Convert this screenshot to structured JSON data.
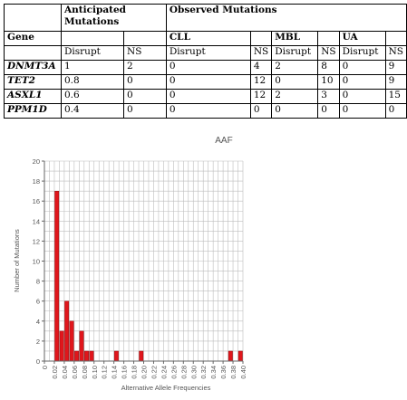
{
  "table": {
    "header1": {
      "anticipated": "Anticipated Mutations",
      "observed": "Observed Mutations"
    },
    "header2": {
      "gene": "Gene",
      "cll": "CLL",
      "mbl": "MBL",
      "ua": "UA"
    },
    "header3": {
      "disrupt_a": "Disrupt",
      "ns_a": "NS",
      "disrupt_cll": "Disrupt",
      "ns_cll": "NS",
      "disrupt_mbl": "Disrupt",
      "ns_mbl": "NS",
      "disrupt_ua": "Disrupt",
      "ns_ua": "NS"
    },
    "rows": [
      {
        "gene": "DNMT3A",
        "ant_disrupt": "1",
        "ant_ns": "2",
        "cll_disrupt": "0",
        "cll_ns": "4",
        "mbl_disrupt": "2",
        "mbl_ns": "8",
        "ua_disrupt": "0",
        "ua_ns": "9"
      },
      {
        "gene": "TET2",
        "ant_disrupt": "0.8",
        "ant_ns": "0",
        "cll_disrupt": "0",
        "cll_ns": "12",
        "mbl_disrupt": "0",
        "mbl_ns": "10",
        "ua_disrupt": "0",
        "ua_ns": "9"
      },
      {
        "gene": "ASXL1",
        "ant_disrupt": "0.6",
        "ant_ns": "0",
        "cll_disrupt": "0",
        "cll_ns": "12",
        "mbl_disrupt": "2",
        "mbl_ns": "3",
        "ua_disrupt": "0",
        "ua_ns": "15"
      },
      {
        "gene": "PPM1D",
        "ant_disrupt": "0.4",
        "ant_ns": "0",
        "cll_disrupt": "0",
        "cll_ns": "0",
        "mbl_disrupt": "0",
        "mbl_ns": "0",
        "ua_disrupt": "0",
        "ua_ns": "0"
      }
    ]
  },
  "chart_data": {
    "type": "bar",
    "title": "AAF",
    "xlabel": "Alternative Allele Frequencies",
    "ylabel": "Number of Mutations",
    "ylim": [
      0,
      20
    ],
    "yticks": [
      "0",
      "2",
      "4",
      "6",
      "8",
      "10",
      "12",
      "14",
      "16",
      "18",
      "20"
    ],
    "xlim": [
      0,
      0.4
    ],
    "xticks": [
      "0",
      "0.02",
      "0.04",
      "0.06",
      "0.08",
      "0.10",
      "0.12",
      "0.14",
      "0.16",
      "0.18",
      "0.20",
      "0.22",
      "0.24",
      "0.26",
      "0.28",
      "0.30",
      "0.32",
      "0.34",
      "0.36",
      "0.38",
      "0.40"
    ],
    "bin_width": 0.01,
    "bins": [
      {
        "x0": 0.02,
        "value": 17
      },
      {
        "x0": 0.03,
        "value": 3
      },
      {
        "x0": 0.04,
        "value": 6
      },
      {
        "x0": 0.05,
        "value": 4
      },
      {
        "x0": 0.06,
        "value": 1
      },
      {
        "x0": 0.07,
        "value": 3
      },
      {
        "x0": 0.08,
        "value": 1
      },
      {
        "x0": 0.09,
        "value": 1
      },
      {
        "x0": 0.14,
        "value": 1
      },
      {
        "x0": 0.19,
        "value": 1
      },
      {
        "x0": 0.37,
        "value": 1
      },
      {
        "x0": 0.39,
        "value": 1
      }
    ],
    "grid": true,
    "bar_color": "#e0161c",
    "bar_edge_color": "#7a0000",
    "grid_color": "#bdbdbd"
  }
}
